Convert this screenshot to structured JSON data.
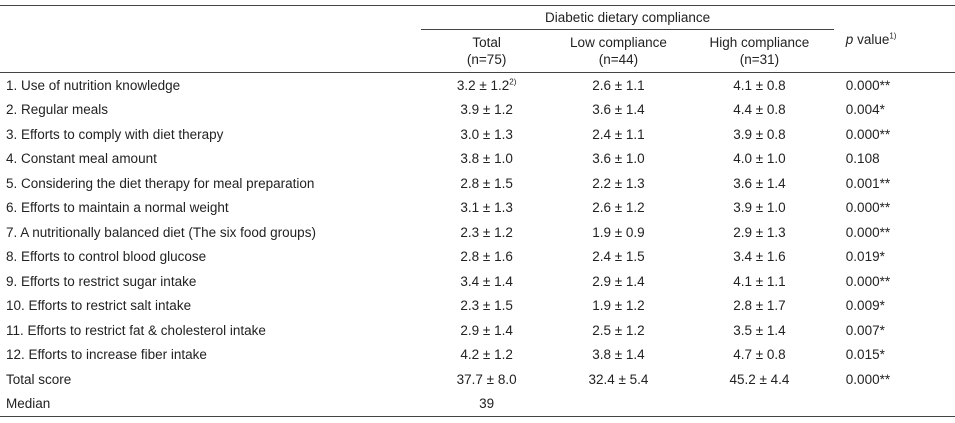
{
  "header": {
    "group_title": "Diabetic dietary compliance",
    "columns": [
      {
        "line1": "Total",
        "line2": "(n=75)"
      },
      {
        "line1": "Low compliance",
        "line2": "(n=44)"
      },
      {
        "line1": "High compliance",
        "line2": "(n=31)"
      }
    ],
    "p_label": "p",
    "p_suffix": " value",
    "p_note": "1)"
  },
  "rows": [
    {
      "label": "1. Use of nutrition knowledge",
      "total": "3.2 ± 1.2",
      "total_note": "2)",
      "low": "2.6 ± 1.1",
      "high": "4.1 ± 0.8",
      "p": "0.000**"
    },
    {
      "label": "2. Regular meals",
      "total": "3.9 ± 1.2",
      "total_note": "",
      "low": "3.6 ± 1.4",
      "high": "4.4 ± 0.8",
      "p": "0.004*"
    },
    {
      "label": "3. Efforts to comply with diet therapy",
      "total": "3.0 ± 1.3",
      "total_note": "",
      "low": "2.4 ± 1.1",
      "high": "3.9 ± 0.8",
      "p": "0.000**"
    },
    {
      "label": "4. Constant meal amount",
      "total": "3.8 ± 1.0",
      "total_note": "",
      "low": "3.6 ± 1.0",
      "high": "4.0 ± 1.0",
      "p": "0.108"
    },
    {
      "label": "5. Considering the diet therapy for meal preparation",
      "total": "2.8 ± 1.5",
      "total_note": "",
      "low": "2.2 ± 1.3",
      "high": "3.6 ± 1.4",
      "p": "0.001**"
    },
    {
      "label": "6. Efforts to maintain a normal weight",
      "total": "3.1 ± 1.3",
      "total_note": "",
      "low": "2.6 ± 1.2",
      "high": "3.9 ± 1.0",
      "p": "0.000**"
    },
    {
      "label": "7. A nutritionally balanced diet (The six food groups)",
      "total": "2.3 ± 1.2",
      "total_note": "",
      "low": "1.9 ± 0.9",
      "high": "2.9 ± 1.3",
      "p": "0.000**"
    },
    {
      "label": "8. Efforts to control blood glucose",
      "total": "2.8 ± 1.6",
      "total_note": "",
      "low": "2.4 ± 1.5",
      "high": "3.4 ± 1.6",
      "p": "0.019*"
    },
    {
      "label": "9. Efforts to restrict sugar intake",
      "total": "3.4 ± 1.4",
      "total_note": "",
      "low": "2.9 ± 1.4",
      "high": "4.1 ± 1.1",
      "p": "0.000**"
    },
    {
      "label": "10. Efforts to restrict salt intake",
      "total": "2.3 ± 1.5",
      "total_note": "",
      "low": "1.9 ± 1.2",
      "high": "2.8 ± 1.7",
      "p": "0.009*"
    },
    {
      "label": "11. Efforts to restrict fat & cholesterol intake",
      "total": "2.9 ± 1.4",
      "total_note": "",
      "low": "2.5 ± 1.2",
      "high": "3.5 ± 1.4",
      "p": "0.007*"
    },
    {
      "label": "12. Efforts to increase fiber intake",
      "total": "4.2 ± 1.2",
      "total_note": "",
      "low": "3.8 ± 1.4",
      "high": "4.7 ± 0.8",
      "p": "0.015*"
    },
    {
      "label": "Total score",
      "total": "37.7 ± 8.0",
      "total_note": "",
      "low": "32.4 ± 5.4",
      "high": "45.2 ± 4.4",
      "p": "0.000**"
    },
    {
      "label": "Median",
      "total": "39",
      "total_note": "",
      "low": "",
      "high": "",
      "p": ""
    }
  ]
}
